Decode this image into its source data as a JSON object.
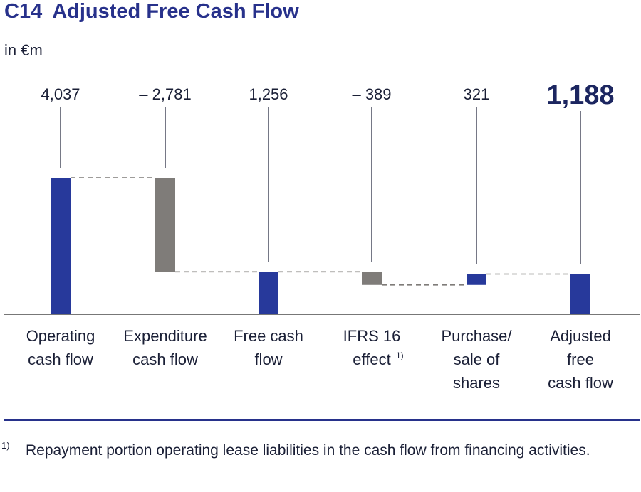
{
  "header": {
    "figure_number": "C14",
    "title": "Adjusted Free Cash Flow",
    "unit": "in €m"
  },
  "chart_data": {
    "type": "bar",
    "subtype": "waterfall",
    "title": "Adjusted Free Cash Flow",
    "ylabel": "in €m",
    "categories": [
      [
        "Operating",
        "cash flow"
      ],
      [
        "Expenditure",
        "cash flow"
      ],
      [
        "Free cash",
        "flow"
      ],
      [
        "IFRS 16",
        "effect"
      ],
      [
        "Purchase/",
        "sale of",
        "shares"
      ],
      [
        "Adjusted",
        "free",
        "cash flow"
      ]
    ],
    "category_footnotes": [
      "",
      "",
      "",
      "1)",
      "",
      ""
    ],
    "values": [
      4037,
      -2781,
      1256,
      -389,
      321,
      1188
    ],
    "value_labels": [
      "4,037",
      "– 2,781",
      "1,256",
      "– 389",
      "321",
      "1,188"
    ],
    "kinds": [
      "total",
      "delta",
      "total",
      "delta",
      "delta",
      "total"
    ],
    "highlight_index": 5,
    "ylim": [
      0,
      4037
    ],
    "colors": {
      "positive": "#27399b",
      "negative": "#7f7c79",
      "connector": "#7f7c79",
      "axis": "#4a4a4a",
      "label_line": "#1a1f36"
    }
  },
  "footnote": {
    "marker": "1)",
    "text": "Repayment portion operating lease liabilities in the cash flow from financing activities."
  }
}
